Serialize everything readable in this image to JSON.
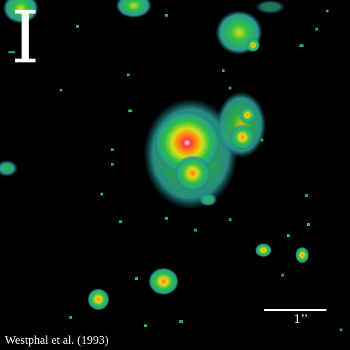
{
  "image": {
    "band_label": "I",
    "scale_bar_label": "1’’",
    "credit": "Westphal et al. (1993)",
    "colors": {
      "background": "#000000",
      "outer": "#3aa6a0",
      "mid": "#24c24a",
      "inner": "#c9e21a",
      "core": "#ff6a00",
      "peak": "#ff3333",
      "white_peak": "#ffd8ff"
    }
  }
}
